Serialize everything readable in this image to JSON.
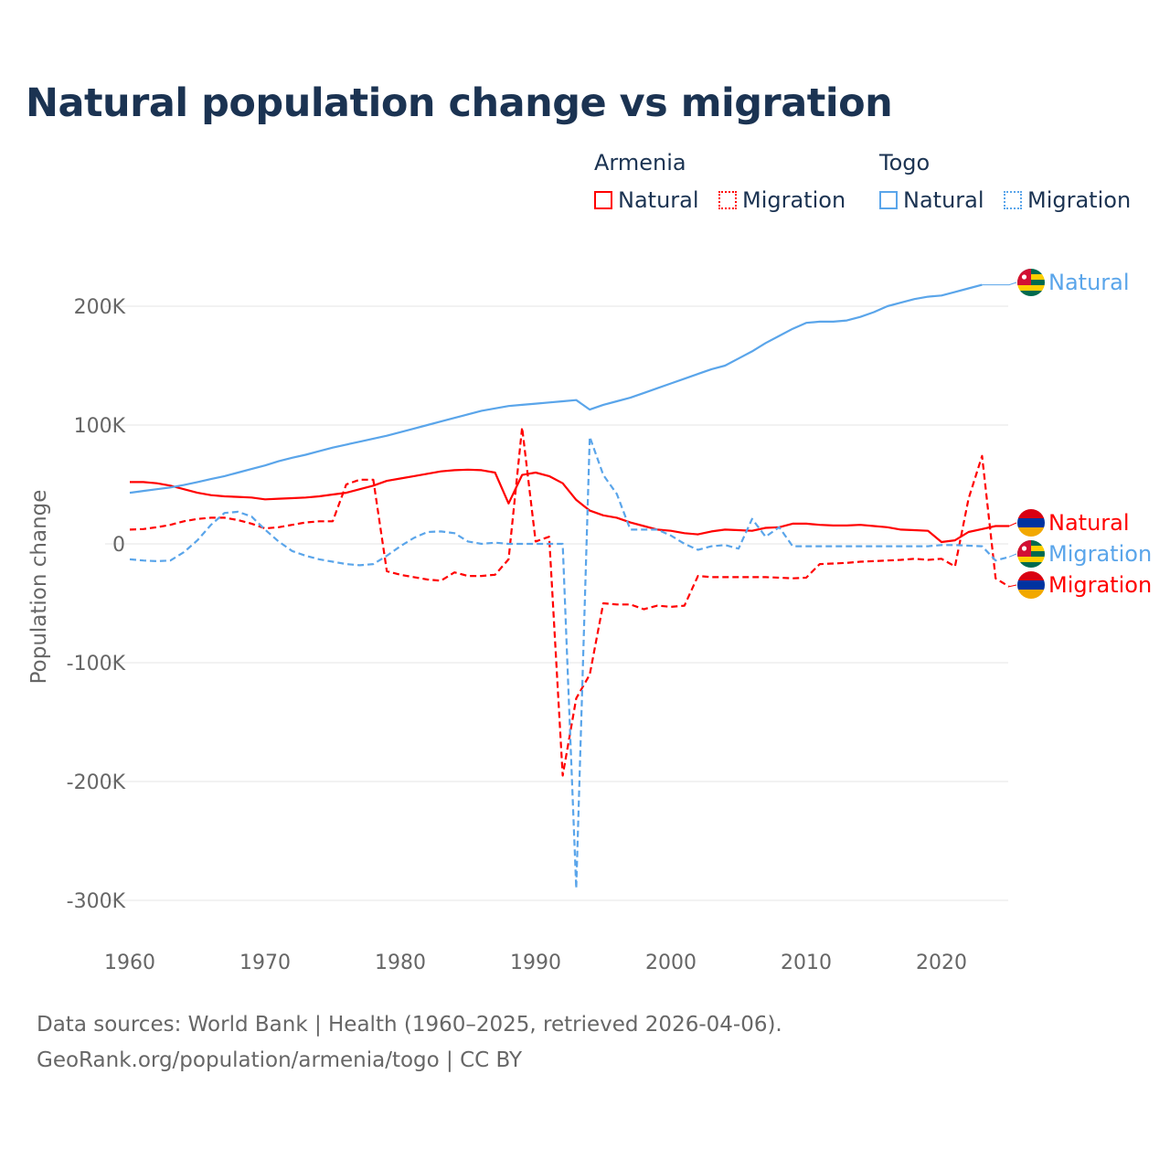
{
  "title": "Natural population change vs migration",
  "legend": {
    "groups": [
      {
        "name": "Armenia",
        "items": [
          "Natural",
          "Migration"
        ]
      },
      {
        "name": "Togo",
        "items": [
          "Natural",
          "Migration"
        ]
      }
    ]
  },
  "colors": {
    "armenia": "#ff0000",
    "togo": "#5aa5ea"
  },
  "footer": {
    "line1": "Data sources: World Bank | Health (1960–2025, retrieved 2026-04-06).",
    "line2": "GeoRank.org/population/armenia/togo | CC BY"
  },
  "chart_data": {
    "type": "line",
    "title": "Natural population change vs migration",
    "xlabel": "",
    "ylabel": "Population change",
    "xlim": [
      1960,
      2025
    ],
    "ylim": [
      -300000,
      200000
    ],
    "x_ticks": [
      "1960",
      "1970",
      "1980",
      "1990",
      "2000",
      "2010",
      "2020"
    ],
    "y_ticks": [
      "200K",
      "100K",
      "0",
      "-100K",
      "-200K",
      "-300K"
    ],
    "grid": true,
    "legend_position": "top-right",
    "series": [
      {
        "name": "Armenia Natural",
        "country": "Armenia",
        "kind": "Natural",
        "label": "Natural",
        "dashed": false,
        "start": 1960,
        "values_k": [
          52,
          52,
          51,
          49,
          46,
          43,
          41,
          40,
          39.5,
          39,
          37.5,
          38,
          38.5,
          39,
          40,
          41.5,
          43,
          46,
          49,
          53,
          55,
          57,
          59,
          61,
          62,
          62.5,
          62,
          60,
          34,
          58,
          60,
          57,
          51,
          37,
          28,
          24,
          22,
          18,
          15,
          12,
          11,
          9,
          8,
          10.5,
          12,
          11.5,
          11,
          13.5,
          14,
          17,
          17,
          16,
          15.5,
          15.5,
          16,
          15,
          14,
          12,
          11.5,
          11,
          1.5,
          3,
          10,
          12.5,
          15,
          15
        ]
      },
      {
        "name": "Armenia Migration",
        "country": "Armenia",
        "kind": "Migration",
        "label": "Migration",
        "dashed": true,
        "start": 1960,
        "values_k": [
          12,
          12.5,
          14,
          16,
          19,
          21,
          22,
          22,
          20,
          17,
          13,
          14,
          16,
          18,
          19,
          19,
          50,
          54,
          54,
          -23,
          -26,
          -28,
          -30,
          -31,
          -24,
          -27,
          -27,
          -26,
          -13,
          98,
          2,
          6,
          -195,
          -130,
          -110,
          -50,
          -51,
          -51,
          -55,
          -52,
          -53,
          -52,
          -27,
          -28,
          -28,
          -28,
          -28,
          -28,
          -28.5,
          -29,
          -28.5,
          -17,
          -16.5,
          -16,
          -15,
          -14.5,
          -14,
          -13.5,
          -12.5,
          -13.5,
          -12.5,
          -19,
          38,
          74,
          -29,
          -36
        ]
      },
      {
        "name": "Togo Natural",
        "country": "Togo",
        "kind": "Natural",
        "label": "Natural",
        "dashed": false,
        "start": 1960,
        "values_k": [
          43,
          44.5,
          46,
          47.5,
          49.5,
          52,
          54.5,
          57,
          60,
          63,
          66,
          69.5,
          72.5,
          75,
          78,
          81,
          83.5,
          86,
          88.5,
          91,
          94,
          97,
          100,
          103,
          106,
          109,
          112,
          114,
          116,
          117,
          118,
          119,
          120,
          121,
          113,
          117,
          120,
          123,
          127,
          131,
          135,
          139,
          143,
          147,
          150,
          156,
          162,
          169,
          175,
          181,
          186,
          187,
          187,
          188,
          191,
          195,
          200,
          203,
          206,
          208,
          209,
          212,
          215,
          218
        ]
      },
      {
        "name": "Togo Migration",
        "country": "Togo",
        "kind": "Migration",
        "label": "Migration",
        "dashed": true,
        "start": 1960,
        "values_k": [
          -13,
          -14,
          -14.5,
          -14,
          -7,
          3,
          16,
          26,
          27,
          23,
          12,
          2,
          -6,
          -10,
          -13,
          -15,
          -17,
          -18,
          -17,
          -10,
          -2,
          5,
          10,
          10.5,
          9,
          2,
          0,
          1,
          0,
          0,
          0,
          0,
          0,
          -290,
          90,
          58,
          42,
          12,
          12,
          12,
          7,
          0,
          -5,
          -2,
          -1,
          -4,
          21,
          6,
          14,
          -2,
          -2,
          -2,
          -2,
          -2,
          -2,
          -2,
          -2,
          -2,
          -2,
          -2,
          -1,
          -1,
          -1.5,
          -2,
          -14,
          -11
        ]
      }
    ]
  }
}
